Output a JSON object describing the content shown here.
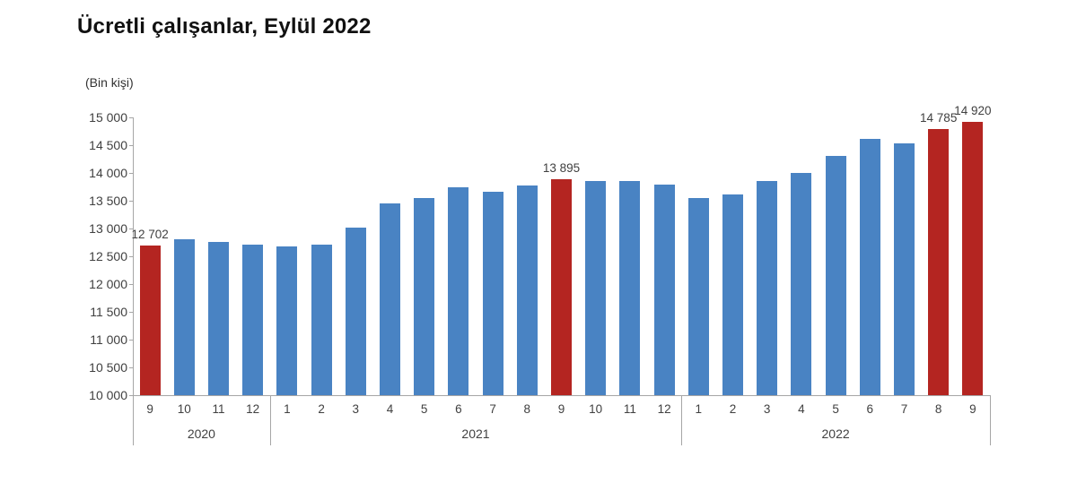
{
  "title": "Ücretli çalışanlar, Eylül 2022",
  "unit_label": "(Bin kişi)",
  "colors": {
    "bar": "#4983c3",
    "bar_highlight": "#b42521",
    "axis": "#a6a6a6",
    "text": "#404040",
    "title_text": "#111111"
  },
  "chart_data": {
    "type": "bar",
    "title": "Ücretli çalışanlar, Eylül 2022",
    "ylabel": "(Bin kişi)",
    "ylim": [
      10000,
      15000
    ],
    "ytick_step": 500,
    "ytick_labels": [
      "15 000",
      "14 500",
      "14 000",
      "13 500",
      "13 000",
      "12 500",
      "12 000",
      "11 500",
      "11 000",
      "10 500",
      "10 000"
    ],
    "grid": false,
    "legend": false,
    "year_groups": [
      {
        "label": "2020",
        "count": 4
      },
      {
        "label": "2021",
        "count": 12
      },
      {
        "label": "2022",
        "count": 9
      }
    ],
    "bars": [
      {
        "year": "2020",
        "month": "9",
        "value": 12702,
        "highlight": true,
        "label": "12 702"
      },
      {
        "year": "2020",
        "month": "10",
        "value": 12810,
        "highlight": false
      },
      {
        "year": "2020",
        "month": "11",
        "value": 12760,
        "highlight": false
      },
      {
        "year": "2020",
        "month": "12",
        "value": 12715,
        "highlight": false
      },
      {
        "year": "2021",
        "month": "1",
        "value": 12680,
        "highlight": false
      },
      {
        "year": "2021",
        "month": "2",
        "value": 12715,
        "highlight": false
      },
      {
        "year": "2021",
        "month": "3",
        "value": 13010,
        "highlight": false
      },
      {
        "year": "2021",
        "month": "4",
        "value": 13460,
        "highlight": false
      },
      {
        "year": "2021",
        "month": "5",
        "value": 13555,
        "highlight": false
      },
      {
        "year": "2021",
        "month": "6",
        "value": 13735,
        "highlight": false
      },
      {
        "year": "2021",
        "month": "7",
        "value": 13665,
        "highlight": false
      },
      {
        "year": "2021",
        "month": "8",
        "value": 13770,
        "highlight": false
      },
      {
        "year": "2021",
        "month": "9",
        "value": 13895,
        "highlight": true,
        "label": "13 895"
      },
      {
        "year": "2021",
        "month": "10",
        "value": 13860,
        "highlight": false
      },
      {
        "year": "2021",
        "month": "11",
        "value": 13855,
        "highlight": false
      },
      {
        "year": "2021",
        "month": "12",
        "value": 13790,
        "highlight": false
      },
      {
        "year": "2022",
        "month": "1",
        "value": 13555,
        "highlight": false
      },
      {
        "year": "2022",
        "month": "2",
        "value": 13620,
        "highlight": false
      },
      {
        "year": "2022",
        "month": "3",
        "value": 13860,
        "highlight": false
      },
      {
        "year": "2022",
        "month": "4",
        "value": 14000,
        "highlight": false
      },
      {
        "year": "2022",
        "month": "5",
        "value": 14305,
        "highlight": false
      },
      {
        "year": "2022",
        "month": "6",
        "value": 14615,
        "highlight": false
      },
      {
        "year": "2022",
        "month": "7",
        "value": 14540,
        "highlight": false
      },
      {
        "year": "2022",
        "month": "8",
        "value": 14785,
        "highlight": true,
        "label": "14 785"
      },
      {
        "year": "2022",
        "month": "9",
        "value": 14920,
        "highlight": true,
        "label": "14 920"
      }
    ]
  }
}
